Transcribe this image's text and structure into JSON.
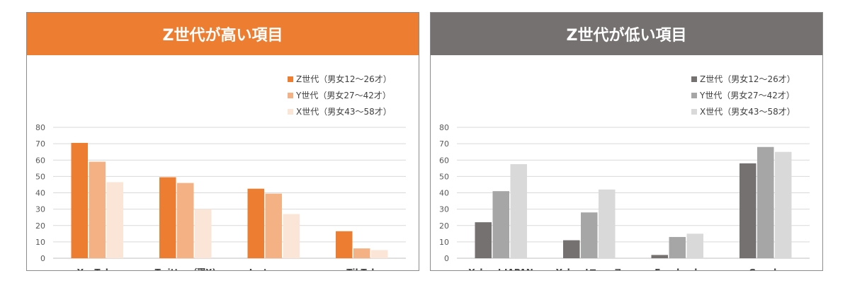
{
  "chart_data": [
    {
      "type": "bar",
      "title": "Z世代が高い項目",
      "banner_color": "#ED7D31",
      "categories": [
        "YouTube",
        "Twitter（現X)",
        "Instagram",
        "TikTok"
      ],
      "series": [
        {
          "name": "Z世代（男女12〜26才）",
          "color": "#ED7D31",
          "values": [
            70.5,
            49.5,
            42.5,
            16.5
          ]
        },
        {
          "name": "Y世代（男女27〜42才）",
          "color": "#F4B183",
          "values": [
            59,
            46,
            39.5,
            6
          ]
        },
        {
          "name": "X世代（男女43〜58才）",
          "color": "#FBE5D6",
          "values": [
            46.5,
            30,
            27,
            5
          ]
        }
      ],
      "yticks": [
        0,
        10,
        20,
        30,
        40,
        50,
        60,
        70,
        80
      ],
      "ylim": [
        0,
        80
      ],
      "grid": true,
      "legend_position": "top-right"
    },
    {
      "type": "bar",
      "title": "Z世代が低い項目",
      "banner_color": "#767171",
      "categories": [
        "Yahoo! JAPAN",
        "Yahoo!ニュース",
        "Facebook",
        "Google"
      ],
      "series": [
        {
          "name": "Z世代（男女12〜26才）",
          "color": "#767171",
          "values": [
            22,
            11,
            2,
            58
          ]
        },
        {
          "name": "Y世代（男女27〜42才）",
          "color": "#A6A6A6",
          "values": [
            41,
            28,
            13,
            68
          ]
        },
        {
          "name": "X世代（男女43〜58才）",
          "color": "#D9D9D9",
          "values": [
            57.5,
            42,
            15,
            65
          ]
        }
      ],
      "yticks": [
        0,
        10,
        20,
        30,
        40,
        50,
        60,
        70,
        80
      ],
      "ylim": [
        0,
        80
      ],
      "grid": true,
      "legend_position": "top-right"
    }
  ]
}
